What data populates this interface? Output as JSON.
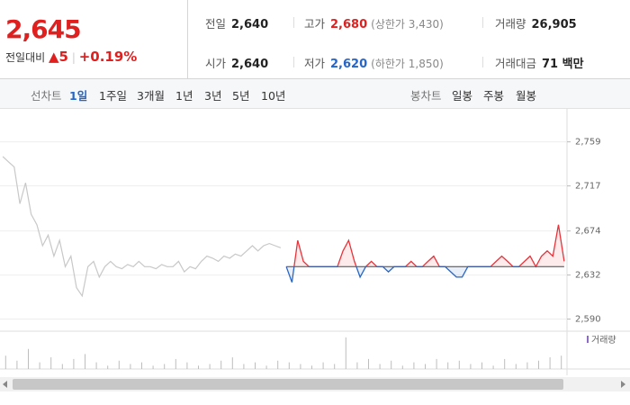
{
  "header": {
    "price": "2,645",
    "change_label": "전일대비",
    "change_arrow": "▲",
    "change": "5",
    "change_rate": "+0.19%",
    "stats": [
      {
        "label": "전일",
        "value": "2,640"
      },
      {
        "label": "고가",
        "value": "2,680",
        "note": "(상한가 3,430)"
      },
      {
        "label": "거래량",
        "value": "26,905"
      },
      {
        "label": "시가",
        "value": "2,640"
      },
      {
        "label": "저가",
        "value": "2,620",
        "note": "(하한가 1,850)"
      },
      {
        "label": "거래대금",
        "value": "71 백만"
      }
    ]
  },
  "tabs": {
    "line_label": "선차트",
    "line_periods": [
      "1일",
      "1주일",
      "3개월",
      "1년",
      "3년",
      "5년",
      "10년"
    ],
    "candle_label": "봉차트",
    "candle_periods": [
      "일봉",
      "주봉",
      "월봉"
    ]
  },
  "chart_data": {
    "type": "line",
    "ylim": [
      2581,
      2787
    ],
    "yticks": [
      {
        "value": 2759,
        "label": "2,759"
      },
      {
        "value": 2717,
        "label": "2,717"
      },
      {
        "value": 2674,
        "label": "2,674"
      },
      {
        "value": 2632,
        "label": "2,632"
      },
      {
        "value": 2590,
        "label": "2,590"
      }
    ],
    "grid": true,
    "baseline": 2640,
    "up_color": "#e8333a",
    "down_color": "#2466c9",
    "series": [
      {
        "color": "#c8c8c8",
        "values": [
          2745,
          2740,
          2735,
          2700,
          2720,
          2690,
          2680,
          2660,
          2670,
          2650,
          2665,
          2640,
          2650,
          2620,
          2612,
          2640,
          2645,
          2630,
          2640,
          2645,
          2640,
          2638,
          2642,
          2640,
          2645,
          2640,
          2640,
          2638,
          2642,
          2640,
          2640,
          2645,
          2635,
          2640,
          2638,
          2645,
          2650,
          2648,
          2645,
          2650,
          2648,
          2652,
          2650,
          2655,
          2660,
          2655,
          2660,
          2662,
          2660,
          2658,
          null,
          null,
          null,
          null,
          null,
          null,
          null,
          null,
          null,
          null,
          null,
          null,
          null,
          null,
          null,
          null,
          null,
          null,
          null,
          null,
          null,
          null,
          null,
          null,
          null,
          null,
          null,
          null,
          null,
          null,
          null,
          null,
          null,
          null,
          null,
          null,
          null,
          null,
          null,
          null,
          null,
          null,
          null,
          null,
          null,
          null,
          null,
          null,
          null,
          null
        ]
      },
      {
        "color": "#e8333a",
        "values": [
          null,
          null,
          null,
          null,
          null,
          null,
          null,
          null,
          null,
          null,
          null,
          null,
          null,
          null,
          null,
          null,
          null,
          null,
          null,
          null,
          null,
          null,
          null,
          null,
          null,
          null,
          null,
          null,
          null,
          null,
          null,
          null,
          null,
          null,
          null,
          null,
          null,
          null,
          null,
          null,
          null,
          null,
          null,
          null,
          null,
          null,
          null,
          null,
          null,
          null,
          2640,
          2625,
          2665,
          2645,
          2640,
          2640,
          2640,
          2640,
          2640,
          2640,
          2655,
          2665,
          2645,
          2630,
          2640,
          2645,
          2640,
          2640,
          2635,
          2640,
          2640,
          2640,
          2645,
          2640,
          2640,
          2645,
          2650,
          2640,
          2640,
          2635,
          2630,
          2630,
          2640,
          2640,
          2640,
          2640,
          2640,
          2645,
          2650,
          2645,
          2640,
          2640,
          2645,
          2650,
          2640,
          2650,
          2655,
          2650,
          2680,
          2645
        ]
      }
    ],
    "volume": {
      "label": "거래량",
      "color": "#bdbdbd",
      "ylim": [
        0,
        100
      ],
      "values": [
        40,
        25,
        60,
        20,
        35,
        15,
        30,
        45,
        20,
        10,
        25,
        15,
        20,
        10,
        15,
        30,
        20,
        10,
        15,
        25,
        35,
        15,
        20,
        10,
        25,
        20,
        15,
        10,
        20,
        15,
        95,
        20,
        30,
        15,
        25,
        10,
        20,
        15,
        30,
        20,
        25,
        15,
        20,
        10,
        30,
        15,
        20,
        25,
        35,
        40
      ]
    }
  }
}
